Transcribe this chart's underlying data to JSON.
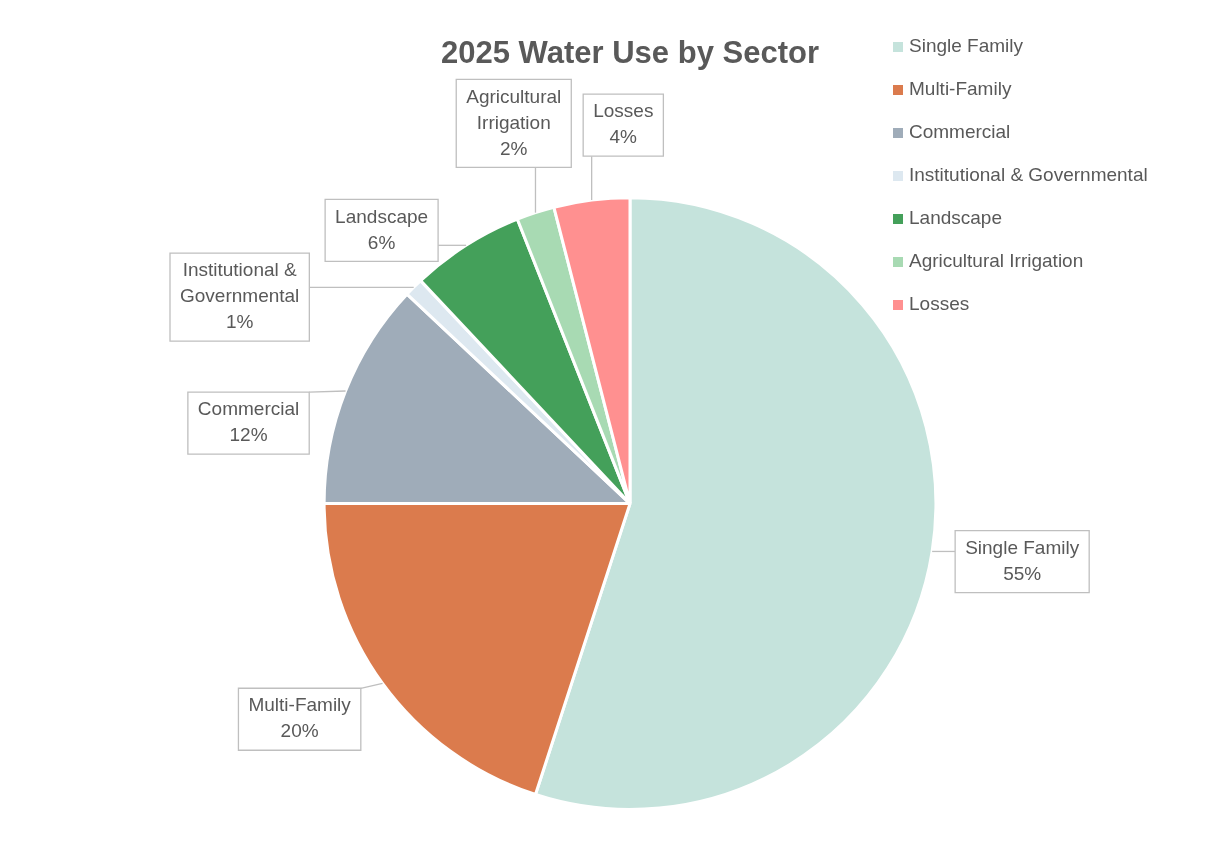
{
  "chart_data": {
    "type": "pie",
    "title": "2025 Water Use by Sector",
    "categories": [
      "Single Family",
      "Multi-Family",
      "Commercial",
      "Institutional & Governmental",
      "Landscape",
      "Agricultural Irrigation",
      "Losses"
    ],
    "values": [
      55,
      20,
      12,
      1,
      6,
      2,
      4
    ],
    "value_labels": [
      "55%",
      "20%",
      "12%",
      "1%",
      "6%",
      "2%",
      "4%"
    ],
    "colors": [
      "#c5e3dc",
      "#db7b4d",
      "#9facb9",
      "#dde8f0",
      "#44a05a",
      "#a8dab3",
      "#ff9090"
    ],
    "legend": "top right"
  }
}
